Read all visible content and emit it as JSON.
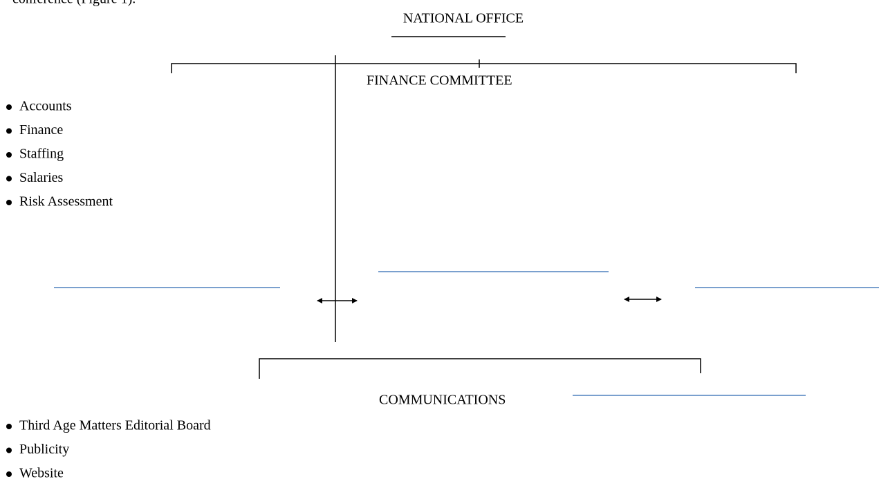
{
  "intro": "conference (Figure 1).",
  "title": "NATIONAL OFFICE",
  "nodes": [
    {
      "label": "FINANCE COMMITTEE",
      "items": [
        "Accounts",
        "Finance",
        "Staffing",
        "Salaries",
        "Risk Assessment"
      ]
    },
    {
      "label": "COMMUNICATIONS",
      "items": [
        "Third Age Matters Editorial Board",
        "Publicity",
        "Website"
      ]
    }
  ]
}
